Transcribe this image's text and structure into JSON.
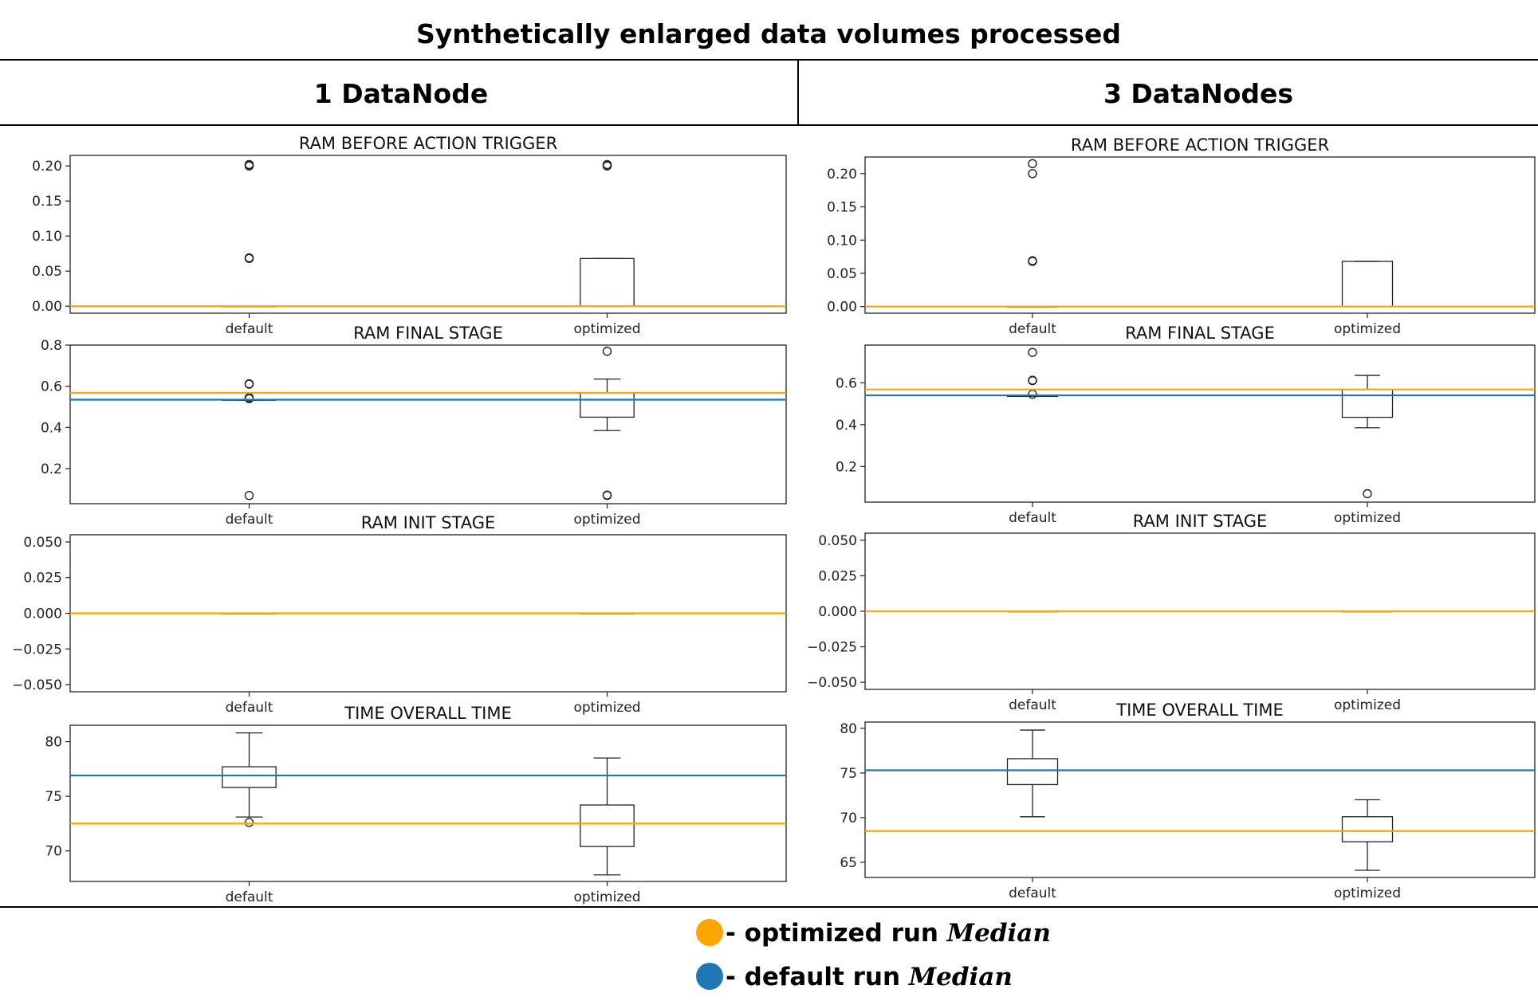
{
  "title": "Synthetically enlarged data volumes processed",
  "columns": [
    "1 DataNode",
    "3 DataNodes"
  ],
  "colors": {
    "optimized_median": "#FFA500",
    "default_median": "#1F77B4",
    "box": "#222222",
    "box_median": "#FF7F0E"
  },
  "legend": [
    {
      "color_key": "optimized_median",
      "label": "- optimized run",
      "italic": "Median"
    },
    {
      "color_key": "default_median",
      "label": "- default run",
      "italic": "Median"
    }
  ],
  "chart_data": [
    {
      "type": "box",
      "column": "1 DataNode",
      "title": "RAM BEFORE ACTION TRIGGER",
      "categories": [
        "default",
        "optimized"
      ],
      "ylim": [
        -0.01,
        0.215
      ],
      "yticks": [
        0.0,
        0.05,
        0.1,
        0.15,
        0.2
      ],
      "yticklabels": [
        "0.00",
        "0.05",
        "0.10",
        "0.15",
        "0.20"
      ],
      "boxes": [
        {
          "category": "default",
          "whisker_low": 0.0,
          "q1": 0.0,
          "median": 0.0,
          "q3": 0.0,
          "whisker_high": 0.0,
          "outliers": [
            0.068,
            0.069,
            0.2,
            0.201,
            0.202
          ]
        },
        {
          "category": "optimized",
          "whisker_low": 0.0,
          "q1": 0.0,
          "median": 0.0,
          "q3": 0.068,
          "whisker_high": 0.068,
          "outliers": [
            0.2,
            0.201,
            0.202
          ]
        }
      ],
      "median_lines": {
        "optimized": 0.0
      }
    },
    {
      "type": "box",
      "column": "1 DataNode",
      "title": "RAM FINAL STAGE",
      "categories": [
        "default",
        "optimized"
      ],
      "ylim": [
        0.03,
        0.8
      ],
      "yticks": [
        0.2,
        0.4,
        0.6,
        0.8
      ],
      "yticklabels": [
        "0.2",
        "0.4",
        "0.6",
        "0.8"
      ],
      "boxes": [
        {
          "category": "default",
          "whisker_low": 0.532,
          "q1": 0.532,
          "median": 0.535,
          "q3": 0.536,
          "whisker_high": 0.536,
          "outliers": [
            0.07,
            0.54,
            0.545,
            0.61,
            0.612
          ]
        },
        {
          "category": "optimized",
          "whisker_low": 0.385,
          "q1": 0.45,
          "median": 0.568,
          "q3": 0.568,
          "whisker_high": 0.635,
          "outliers": [
            0.07,
            0.072,
            0.77
          ]
        }
      ],
      "median_lines": {
        "optimized": 0.568,
        "default": 0.535
      }
    },
    {
      "type": "box",
      "column": "1 DataNode",
      "title": "RAM INIT STAGE",
      "categories": [
        "default",
        "optimized"
      ],
      "ylim": [
        -0.055,
        0.055
      ],
      "yticks": [
        -0.05,
        -0.025,
        0.0,
        0.025,
        0.05
      ],
      "yticklabels": [
        "−0.050",
        "−0.025",
        "0.000",
        "0.025",
        "0.050"
      ],
      "boxes": [
        {
          "category": "default",
          "whisker_low": 0.0,
          "q1": 0.0,
          "median": 0.0,
          "q3": 0.0,
          "whisker_high": 0.0,
          "outliers": []
        },
        {
          "category": "optimized",
          "whisker_low": 0.0,
          "q1": 0.0,
          "median": 0.0,
          "q3": 0.0,
          "whisker_high": 0.0,
          "outliers": []
        }
      ],
      "median_lines": {
        "optimized": 0.0
      }
    },
    {
      "type": "box",
      "column": "1 DataNode",
      "title": "TIME OVERALL TIME",
      "categories": [
        "default",
        "optimized"
      ],
      "ylim": [
        67.2,
        81.5
      ],
      "yticks": [
        70,
        75,
        80
      ],
      "yticklabels": [
        "70",
        "75",
        "80"
      ],
      "boxes": [
        {
          "category": "default",
          "whisker_low": 73.1,
          "q1": 75.8,
          "median": 76.9,
          "q3": 77.7,
          "whisker_high": 80.8,
          "outliers": [
            72.6
          ]
        },
        {
          "category": "optimized",
          "whisker_low": 67.8,
          "q1": 70.4,
          "median": 72.5,
          "q3": 74.2,
          "whisker_high": 78.5,
          "outliers": []
        }
      ],
      "median_lines": {
        "default": 76.9,
        "optimized": 72.5
      }
    },
    {
      "type": "box",
      "column": "3 DataNodes",
      "title": "RAM BEFORE ACTION TRIGGER",
      "categories": [
        "default",
        "optimized"
      ],
      "ylim": [
        -0.01,
        0.225
      ],
      "yticks": [
        0.0,
        0.05,
        0.1,
        0.15,
        0.2
      ],
      "yticklabels": [
        "0.00",
        "0.05",
        "0.10",
        "0.15",
        "0.20"
      ],
      "boxes": [
        {
          "category": "default",
          "whisker_low": 0.0,
          "q1": 0.0,
          "median": 0.0,
          "q3": 0.0,
          "whisker_high": 0.0,
          "outliers": [
            0.068,
            0.069,
            0.2,
            0.215
          ]
        },
        {
          "category": "optimized",
          "whisker_low": 0.0,
          "q1": 0.0,
          "median": 0.0,
          "q3": 0.068,
          "whisker_high": 0.068,
          "outliers": []
        }
      ],
      "median_lines": {
        "optimized": 0.0
      }
    },
    {
      "type": "box",
      "column": "3 DataNodes",
      "title": "RAM FINAL STAGE",
      "categories": [
        "default",
        "optimized"
      ],
      "ylim": [
        0.03,
        0.78
      ],
      "yticks": [
        0.2,
        0.4,
        0.6
      ],
      "yticklabels": [
        "0.2",
        "0.4",
        "0.6"
      ],
      "boxes": [
        {
          "category": "default",
          "whisker_low": 0.535,
          "q1": 0.535,
          "median": 0.54,
          "q3": 0.541,
          "whisker_high": 0.541,
          "outliers": [
            0.545,
            0.61,
            0.612,
            0.745
          ]
        },
        {
          "category": "optimized",
          "whisker_low": 0.385,
          "q1": 0.435,
          "median": 0.568,
          "q3": 0.568,
          "whisker_high": 0.635,
          "outliers": [
            0.07
          ]
        }
      ],
      "median_lines": {
        "optimized": 0.568,
        "default": 0.54
      }
    },
    {
      "type": "box",
      "column": "3 DataNodes",
      "title": "RAM INIT STAGE",
      "categories": [
        "default",
        "optimized"
      ],
      "ylim": [
        -0.055,
        0.055
      ],
      "yticks": [
        -0.05,
        -0.025,
        0.0,
        0.025,
        0.05
      ],
      "yticklabels": [
        "−0.050",
        "−0.025",
        "0.000",
        "0.025",
        "0.050"
      ],
      "boxes": [
        {
          "category": "default",
          "whisker_low": 0.0,
          "q1": 0.0,
          "median": 0.0,
          "q3": 0.0,
          "whisker_high": 0.0,
          "outliers": []
        },
        {
          "category": "optimized",
          "whisker_low": 0.0,
          "q1": 0.0,
          "median": 0.0,
          "q3": 0.0,
          "whisker_high": 0.0,
          "outliers": []
        }
      ],
      "median_lines": {
        "optimized": 0.0
      }
    },
    {
      "type": "box",
      "column": "3 DataNodes",
      "title": "TIME OVERALL TIME",
      "categories": [
        "default",
        "optimized"
      ],
      "ylim": [
        63.3,
        80.7
      ],
      "yticks": [
        65,
        70,
        75,
        80
      ],
      "yticklabels": [
        "65",
        "70",
        "75",
        "80"
      ],
      "boxes": [
        {
          "category": "default",
          "whisker_low": 70.1,
          "q1": 73.7,
          "median": 75.3,
          "q3": 76.6,
          "whisker_high": 79.8,
          "outliers": []
        },
        {
          "category": "optimized",
          "whisker_low": 64.1,
          "q1": 67.3,
          "median": 68.5,
          "q3": 70.1,
          "whisker_high": 72.0,
          "outliers": []
        }
      ],
      "median_lines": {
        "default": 75.3,
        "optimized": 68.5
      }
    }
  ]
}
